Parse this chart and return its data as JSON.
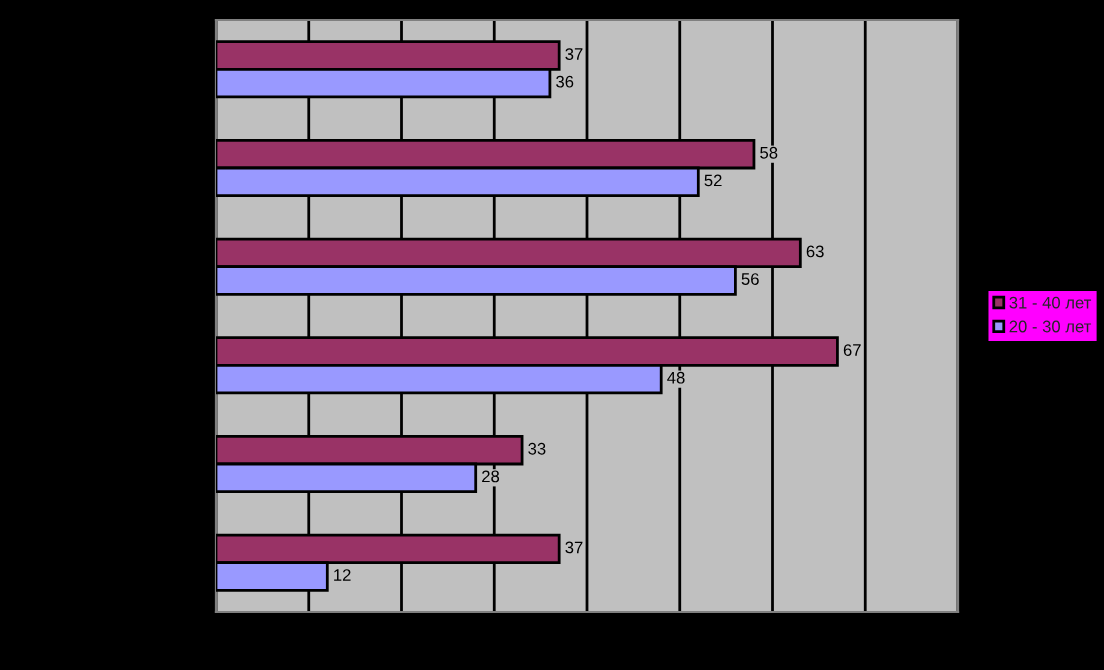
{
  "chart_data": {
    "type": "bar",
    "orientation": "horizontal",
    "categories": [
      null,
      null,
      null,
      null,
      null,
      null
    ],
    "series": [
      {
        "name": "31 - 40 лет",
        "color": "#993366",
        "values": [
          37,
          58,
          63,
          67,
          33,
          37
        ]
      },
      {
        "name": "20 - 30 лет",
        "color": "#9999ff",
        "values": [
          36,
          52,
          56,
          48,
          28,
          12
        ]
      }
    ],
    "xlim": [
      0,
      80
    ],
    "xticks": [
      {
        "value": 0,
        "label": null
      },
      {
        "value": 10,
        "label": null
      },
      {
        "value": 20,
        "label": null
      },
      {
        "value": 30,
        "label": null
      },
      {
        "value": 40,
        "label": null
      },
      {
        "value": 50,
        "label": null
      },
      {
        "value": 60,
        "label": null
      },
      {
        "value": 70,
        "label": null
      },
      {
        "value": 80,
        "label": null
      }
    ],
    "grid": "x",
    "data_labels": true,
    "legend": "right"
  }
}
